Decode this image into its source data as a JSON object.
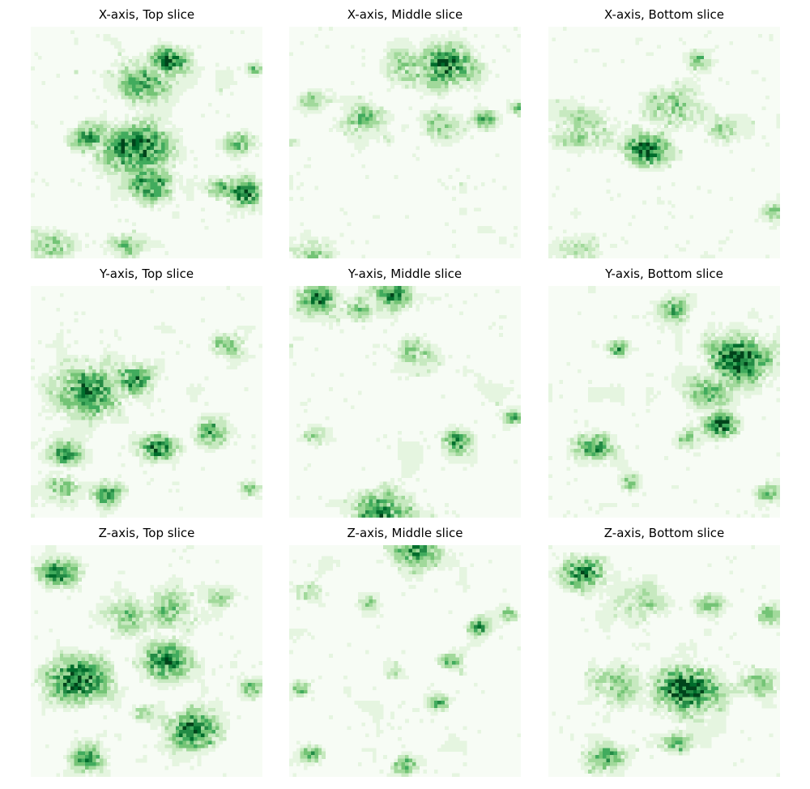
{
  "figure": {
    "colormap": "Greens",
    "color_stops": [
      "#f7fcf5",
      "#e5f5e0",
      "#c7e9c0",
      "#a1d99b",
      "#74c476",
      "#41ab5d",
      "#238b45",
      "#006d2c",
      "#00441b"
    ]
  },
  "chart_data": [
    {
      "type": "heatmap",
      "title": "X-axis, Top slice",
      "grid": false,
      "axes": "off",
      "hotspots": [
        [
          0.6,
          0.15,
          0.08,
          0.9
        ],
        [
          0.48,
          0.24,
          0.12,
          0.6
        ],
        [
          0.45,
          0.52,
          0.14,
          0.85
        ],
        [
          0.25,
          0.48,
          0.08,
          0.6
        ],
        [
          0.52,
          0.68,
          0.1,
          0.75
        ],
        [
          0.92,
          0.72,
          0.08,
          0.8
        ],
        [
          0.82,
          0.7,
          0.06,
          0.6
        ],
        [
          0.08,
          0.95,
          0.1,
          0.45
        ],
        [
          0.4,
          0.95,
          0.08,
          0.4
        ],
        [
          0.97,
          0.18,
          0.04,
          0.55
        ],
        [
          0.9,
          0.5,
          0.06,
          0.6
        ]
      ]
    },
    {
      "type": "heatmap",
      "title": "X-axis, Middle slice",
      "grid": false,
      "axes": "off",
      "hotspots": [
        [
          0.68,
          0.17,
          0.12,
          0.85
        ],
        [
          0.52,
          0.18,
          0.1,
          0.5
        ],
        [
          0.1,
          0.32,
          0.06,
          0.4
        ],
        [
          0.32,
          0.4,
          0.09,
          0.45
        ],
        [
          0.85,
          0.4,
          0.05,
          0.6
        ],
        [
          0.65,
          0.42,
          0.08,
          0.45
        ],
        [
          0.1,
          0.98,
          0.09,
          0.4
        ],
        [
          0.99,
          0.35,
          0.04,
          0.5
        ],
        [
          0.01,
          0.5,
          0.03,
          0.35
        ]
      ]
    },
    {
      "type": "heatmap",
      "title": "X-axis, Bottom slice",
      "grid": false,
      "axes": "off",
      "hotspots": [
        [
          0.42,
          0.53,
          0.09,
          0.95
        ],
        [
          0.55,
          0.35,
          0.13,
          0.45
        ],
        [
          0.15,
          0.45,
          0.12,
          0.4
        ],
        [
          0.75,
          0.45,
          0.08,
          0.35
        ],
        [
          0.65,
          0.15,
          0.06,
          0.45
        ],
        [
          0.97,
          0.8,
          0.05,
          0.4
        ],
        [
          0.12,
          0.97,
          0.09,
          0.25
        ]
      ]
    },
    {
      "type": "heatmap",
      "title": "Y-axis, Top slice",
      "grid": false,
      "axes": "off",
      "hotspots": [
        [
          0.24,
          0.45,
          0.14,
          0.75
        ],
        [
          0.45,
          0.4,
          0.09,
          0.7
        ],
        [
          0.55,
          0.7,
          0.08,
          0.8
        ],
        [
          0.78,
          0.63,
          0.07,
          0.75
        ],
        [
          0.15,
          0.72,
          0.07,
          0.65
        ],
        [
          0.33,
          0.9,
          0.07,
          0.6
        ],
        [
          0.85,
          0.25,
          0.07,
          0.5
        ],
        [
          0.14,
          0.87,
          0.08,
          0.5
        ],
        [
          0.95,
          0.88,
          0.05,
          0.45
        ]
      ]
    },
    {
      "type": "heatmap",
      "title": "Y-axis, Middle slice",
      "grid": false,
      "axes": "off",
      "hotspots": [
        [
          0.12,
          0.05,
          0.08,
          0.75
        ],
        [
          0.45,
          0.04,
          0.09,
          0.65
        ],
        [
          0.4,
          0.97,
          0.11,
          0.8
        ],
        [
          0.73,
          0.67,
          0.07,
          0.7
        ],
        [
          0.97,
          0.57,
          0.04,
          0.6
        ],
        [
          0.55,
          0.28,
          0.08,
          0.45
        ],
        [
          0.3,
          0.1,
          0.07,
          0.45
        ],
        [
          0.1,
          0.65,
          0.06,
          0.35
        ]
      ]
    },
    {
      "type": "heatmap",
      "title": "Y-axis, Bottom slice",
      "grid": false,
      "axes": "off",
      "hotspots": [
        [
          0.82,
          0.32,
          0.13,
          0.95
        ],
        [
          0.7,
          0.45,
          0.09,
          0.6
        ],
        [
          0.3,
          0.27,
          0.05,
          0.65
        ],
        [
          0.75,
          0.6,
          0.07,
          0.85
        ],
        [
          0.2,
          0.7,
          0.09,
          0.65
        ],
        [
          0.55,
          0.1,
          0.07,
          0.5
        ],
        [
          0.35,
          0.85,
          0.05,
          0.45
        ],
        [
          0.95,
          0.9,
          0.06,
          0.5
        ],
        [
          0.6,
          0.65,
          0.06,
          0.4
        ]
      ]
    },
    {
      "type": "heatmap",
      "title": "Z-axis, Top slice",
      "grid": false,
      "axes": "off",
      "hotspots": [
        [
          0.2,
          0.58,
          0.13,
          0.9
        ],
        [
          0.58,
          0.5,
          0.1,
          0.85
        ],
        [
          0.12,
          0.12,
          0.08,
          0.75
        ],
        [
          0.42,
          0.3,
          0.1,
          0.45
        ],
        [
          0.6,
          0.28,
          0.12,
          0.4
        ],
        [
          0.7,
          0.8,
          0.11,
          0.8
        ],
        [
          0.25,
          0.92,
          0.08,
          0.6
        ],
        [
          0.95,
          0.62,
          0.05,
          0.5
        ],
        [
          0.48,
          0.72,
          0.05,
          0.45
        ],
        [
          0.82,
          0.22,
          0.06,
          0.35
        ]
      ]
    },
    {
      "type": "heatmap",
      "title": "Z-axis, Middle slice",
      "grid": false,
      "axes": "off",
      "hotspots": [
        [
          0.55,
          0.02,
          0.1,
          0.7
        ],
        [
          0.82,
          0.35,
          0.05,
          0.65
        ],
        [
          0.08,
          0.2,
          0.05,
          0.5
        ],
        [
          0.35,
          0.25,
          0.04,
          0.4
        ],
        [
          0.7,
          0.5,
          0.05,
          0.5
        ],
        [
          0.05,
          0.62,
          0.04,
          0.5
        ],
        [
          0.65,
          0.68,
          0.05,
          0.6
        ],
        [
          0.1,
          0.9,
          0.05,
          0.7
        ],
        [
          0.5,
          0.95,
          0.05,
          0.6
        ],
        [
          0.45,
          0.55,
          0.04,
          0.3
        ],
        [
          0.95,
          0.3,
          0.04,
          0.5
        ]
      ]
    },
    {
      "type": "heatmap",
      "title": "Z-axis, Bottom slice",
      "grid": false,
      "axes": "off",
      "hotspots": [
        [
          0.6,
          0.62,
          0.13,
          0.95
        ],
        [
          0.15,
          0.12,
          0.09,
          0.85
        ],
        [
          0.4,
          0.25,
          0.12,
          0.35
        ],
        [
          0.3,
          0.6,
          0.11,
          0.4
        ],
        [
          0.95,
          0.3,
          0.05,
          0.55
        ],
        [
          0.9,
          0.6,
          0.08,
          0.45
        ],
        [
          0.25,
          0.92,
          0.08,
          0.6
        ],
        [
          0.7,
          0.25,
          0.06,
          0.4
        ],
        [
          0.55,
          0.85,
          0.07,
          0.5
        ]
      ]
    }
  ]
}
